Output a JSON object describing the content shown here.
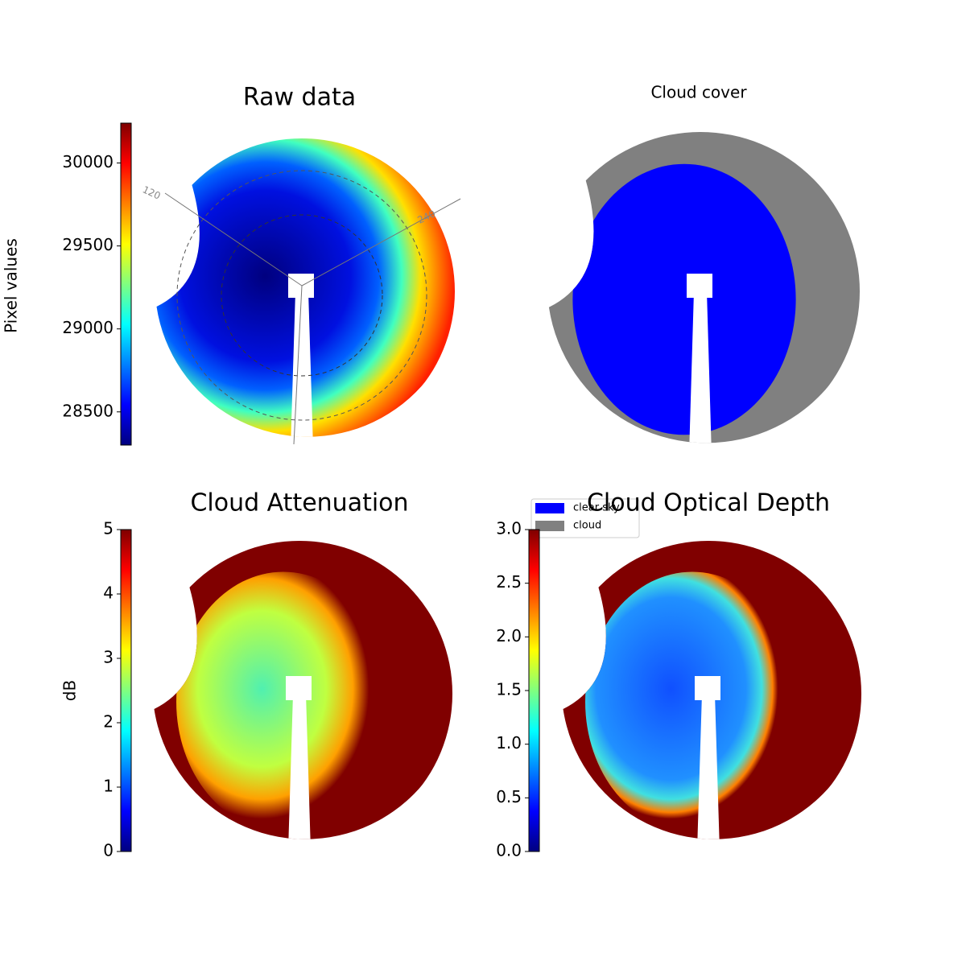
{
  "chart_data": [
    {
      "type": "image",
      "title": "Raw data",
      "colormap": "jet",
      "colorbar": {
        "label": "Pixel values",
        "clim": [
          28300,
          30240
        ],
        "ticks": [
          28500,
          29000,
          29500,
          30000
        ]
      },
      "annotations": [
        "120",
        "240"
      ]
    },
    {
      "type": "image",
      "title": "Cloud cover",
      "legend": {
        "entries": [
          {
            "name": "clear sky",
            "color": "#0000ff"
          },
          {
            "name": "cloud",
            "color": "#808080"
          }
        ]
      }
    },
    {
      "type": "image",
      "title": "Cloud Attenuation",
      "colormap": "jet",
      "colorbar": {
        "label": "dB",
        "clim": [
          0,
          5
        ],
        "ticks": [
          0,
          1,
          2,
          3,
          4,
          5
        ]
      }
    },
    {
      "type": "image",
      "title": "Cloud Optical Depth",
      "colormap": "jet",
      "colorbar": {
        "clim": [
          0,
          3
        ],
        "ticks": [
          {
            "value": 0,
            "label": "0.0"
          },
          {
            "value": 0.5,
            "label": "0.5"
          },
          {
            "value": 1,
            "label": "1.0"
          },
          {
            "value": 1.5,
            "label": "1.5"
          },
          {
            "value": 2,
            "label": "2.0"
          },
          {
            "value": 2.5,
            "label": "2.5"
          },
          {
            "value": 3,
            "label": "3.0"
          }
        ]
      }
    }
  ]
}
